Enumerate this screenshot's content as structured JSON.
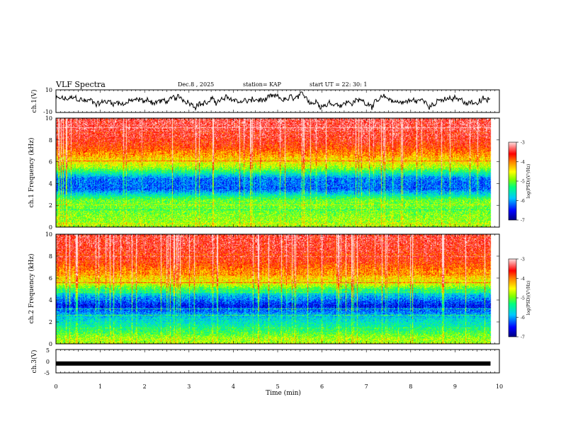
{
  "header": {
    "title": "VLF Spectra",
    "date": "Dec.8 , 2025",
    "station": "station= KAP",
    "start": "start UT = 22: 30: 1"
  },
  "colors": {
    "scale": [
      "#000080",
      "#0000ff",
      "#00c8ff",
      "#00ff80",
      "#80ff00",
      "#ffff00",
      "#ff8000",
      "#ff0000",
      "#ffe0e0"
    ]
  },
  "chart_data": [
    {
      "type": "line",
      "panel": "ch1-waveform",
      "ylabel": "ch.1(V)",
      "ylim": [
        -10,
        10
      ],
      "yticks": [
        "10",
        "-10"
      ],
      "xlim": [
        0,
        10
      ]
    },
    {
      "type": "heatmap",
      "panel": "ch1-spectrogram",
      "ylabel": "ch.1 Frequency (kHz)",
      "ylim": [
        0,
        10
      ],
      "yticks": [
        "0",
        "2",
        "4",
        "6",
        "8",
        "10"
      ],
      "xlim": [
        0,
        10
      ],
      "colorbar": {
        "label": "log(PSD)(V²/Hz)",
        "range": [
          -7,
          -3
        ],
        "ticks": [
          "-3",
          "-4",
          "-5",
          "-6",
          "-7"
        ]
      },
      "profile_khz": [
        0.5,
        1.5,
        2.5,
        3.5,
        4.5,
        5.5,
        6.5,
        7.5,
        8.5,
        9.5
      ],
      "profile_level": [
        0.55,
        0.5,
        0.5,
        0.2,
        0.22,
        0.55,
        0.7,
        0.82,
        0.88,
        0.9
      ]
    },
    {
      "type": "heatmap",
      "panel": "ch2-spectrogram",
      "ylabel": "ch.2 Frequency (kHz)",
      "ylim": [
        0,
        10
      ],
      "yticks": [
        "0",
        "2",
        "4",
        "6",
        "8",
        "10"
      ],
      "xlim": [
        0,
        10
      ],
      "colorbar": {
        "label": "log(PSD)(V²/Hz)",
        "range": [
          -7,
          -3
        ],
        "ticks": [
          "-3",
          "-4",
          "-5",
          "-6",
          "-7"
        ]
      },
      "profile_khz": [
        0.5,
        1.5,
        2.5,
        3.5,
        4.5,
        5.5,
        6.5,
        7.5,
        8.5,
        9.5
      ],
      "profile_level": [
        0.55,
        0.4,
        0.3,
        0.12,
        0.3,
        0.6,
        0.72,
        0.82,
        0.86,
        0.88
      ]
    },
    {
      "type": "line",
      "panel": "ch3-waveform",
      "ylabel": "ch.3(V)",
      "ylim": [
        -5,
        5
      ],
      "yticks": [
        "5",
        "0",
        "-5"
      ],
      "xlim": [
        0,
        10
      ],
      "level_v": -1
    }
  ],
  "xaxis": {
    "label": "Time (min)",
    "ticks": [
      "0",
      "1",
      "2",
      "3",
      "4",
      "5",
      "6",
      "7",
      "8",
      "9",
      "10"
    ],
    "data_end_min": 9.8
  }
}
